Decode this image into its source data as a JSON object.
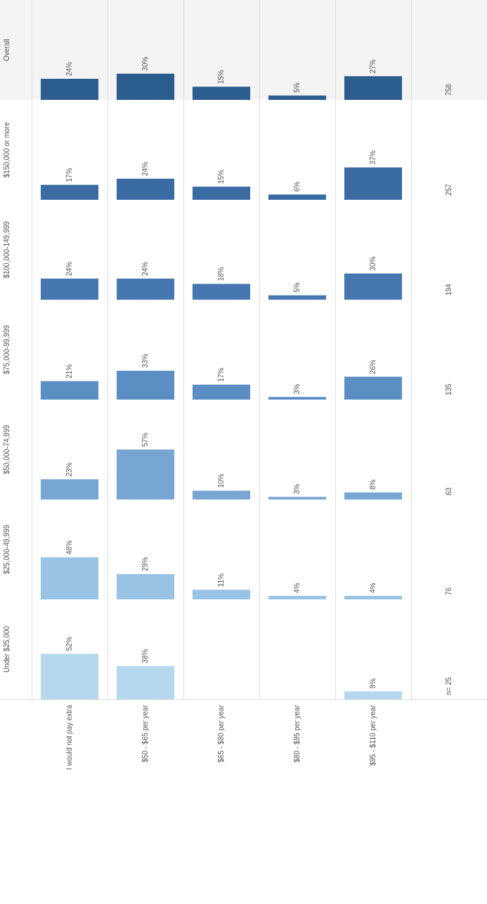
{
  "chart_data": [
    {
      "type": "bar",
      "title": "Overall",
      "categories": [
        null,
        null,
        null,
        null,
        null
      ],
      "values": [
        24,
        30,
        15,
        5,
        27
      ],
      "value_labels": [
        "24%",
        "30%",
        "15%",
        "5%",
        "27%"
      ],
      "color": "#2b5d8f",
      "annotations": [
        "758"
      ],
      "grid": "x",
      "legend": false,
      "tick_labels": false
    },
    {
      "type": "bar",
      "title": "$150,000 or more",
      "categories": [
        null,
        null,
        null,
        null,
        null
      ],
      "values": [
        17,
        24,
        15,
        6,
        37
      ],
      "value_labels": [
        "17%",
        "24%",
        "15%",
        "6%",
        "37%"
      ],
      "color": "#3a6ca3",
      "annotations": [
        "257"
      ],
      "grid": "x",
      "legend": false,
      "tick_labels": false
    },
    {
      "type": "bar",
      "title": "$100,000-149,999",
      "categories": [
        null,
        null,
        null,
        null,
        null
      ],
      "values": [
        24,
        24,
        18,
        5,
        30
      ],
      "value_labels": [
        "24%",
        "24%",
        "18%",
        "5%",
        "30%"
      ],
      "color": "#4677b0",
      "annotations": [
        "194"
      ],
      "grid": "x",
      "legend": false,
      "tick_labels": false
    },
    {
      "type": "bar",
      "title": "$75,000-99,999",
      "categories": [
        null,
        null,
        null,
        null,
        null
      ],
      "values": [
        21,
        33,
        17,
        3,
        26
      ],
      "value_labels": [
        "21%",
        "33%",
        "17%",
        "3%",
        "26%"
      ],
      "color": "#5b8fc4",
      "annotations": [
        "135"
      ],
      "grid": "x",
      "legend": false,
      "tick_labels": false
    },
    {
      "type": "bar",
      "title": "$50,000-74,999",
      "categories": [
        null,
        null,
        null,
        null,
        null
      ],
      "values": [
        23,
        57,
        10,
        3,
        8
      ],
      "value_labels": [
        "23%",
        "57%",
        "10%",
        "3%",
        "8%"
      ],
      "color": "#78a6d2",
      "annotations": [
        "63"
      ],
      "grid": "x",
      "legend": false,
      "tick_labels": false
    },
    {
      "type": "bar",
      "title": "$25,000-49,999",
      "categories": [
        null,
        null,
        null,
        null,
        null
      ],
      "values": [
        48,
        29,
        11,
        4,
        4
      ],
      "value_labels": [
        "48%",
        "29%",
        "11%",
        "4%",
        "4%"
      ],
      "color": "#98c3e4",
      "annotations": [
        "76"
      ],
      "grid": "x",
      "legend": false,
      "tick_labels": false
    },
    {
      "type": "bar",
      "title": "Under $25,000",
      "categories": [
        "I would not pay extra",
        "$50 - $65 per year",
        "$65 - $80 per year",
        "$80 - $95 per year",
        "$95 - $110 per year"
      ],
      "values": [
        52,
        38,
        null,
        null,
        9
      ],
      "value_labels": [
        "52%",
        "38%",
        null,
        null,
        "9%"
      ],
      "color": "#b5d8ef",
      "annotations": [
        "n= 25"
      ],
      "grid": "x",
      "legend": false,
      "tick_labels": "x"
    }
  ]
}
